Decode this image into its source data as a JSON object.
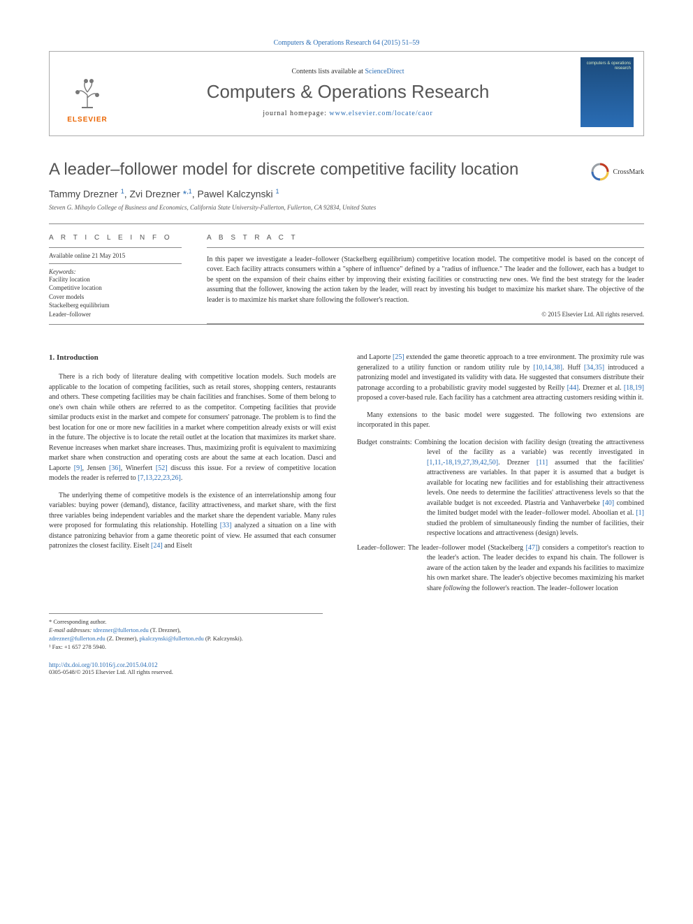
{
  "header": {
    "citation": "Computers & Operations Research 64 (2015) 51–59",
    "contents_prefix": "Contents lists available at ",
    "contents_link": "ScienceDirect",
    "journal_name": "Computers & Operations Research",
    "homepage_prefix": "journal homepage: ",
    "homepage_url": "www.elsevier.com/locate/caor",
    "cover_text": "computers & operations research",
    "elsevier": "ELSEVIER"
  },
  "crossmark": "CrossMark",
  "article": {
    "title": "A leader–follower model for discrete competitive facility location",
    "authors_html": "Tammy Drezner <sup>1</sup>, Zvi Drezner <span class='ast'>*</span><sup>,1</sup>, Pawel Kalczynski <sup>1</sup>",
    "affiliation": "Steven G. Mihaylo College of Business and Economics, California State University-Fullerton, Fullerton, CA 92834, United States"
  },
  "meta": {
    "info_head": "A R T I C L E   I N F O",
    "abs_head": "A B S T R A C T",
    "available": "Available online 21 May 2015",
    "kw_head": "Keywords:",
    "keywords": [
      "Facility location",
      "Competitive location",
      "Cover models",
      "Stackelberg equilibrium",
      "Leader–follower"
    ]
  },
  "abstract": "In this paper we investigate a leader–follower (Stackelberg equilibrium) competitive location model. The competitive model is based on the concept of cover. Each facility attracts consumers within a \"sphere of influence\" defined by a \"radius of influence.\" The leader and the follower, each has a budget to be spent on the expansion of their chains either by improving their existing facilities or constructing new ones. We find the best strategy for the leader assuming that the follower, knowing the action taken by the leader, will react by investing his budget to maximize his market share. The objective of the leader is to maximize his market share following the follower's reaction.",
  "copyright": "© 2015 Elsevier Ltd. All rights reserved.",
  "section1_head": "1.  Introduction",
  "left_paras": [
    "There is a rich body of literature dealing with competitive location models. Such models are applicable to the location of competing facilities, such as retail stores, shopping centers, restaurants and others. These competing facilities may be chain facilities and franchises. Some of them belong to one's own chain while others are referred to as the competitor. Competing facilities that provide similar products exist in the market and compete for consumers' patronage. The problem is to find the best location for one or more new facilities in a market where competition already exists or will exist in the future. The objective is to locate the retail outlet at the location that maximizes its market share. Revenue increases when market share increases. Thus, maximizing profit is equivalent to maximizing market share when construction and operating costs are about the same at each location. Dasci and Laporte <a class='cite' data-name='cite-link' data-interactable='true'>[9]</a>, Jensen <a class='cite' data-name='cite-link' data-interactable='true'>[36]</a>, Winerfert <a class='cite' data-name='cite-link' data-interactable='true'>[52]</a> discuss this issue. For a review of competitive location models the reader is referred to <a class='cite' data-name='cite-link' data-interactable='true'>[7,13,22,23,26]</a>.",
    "The underlying theme of competitive models is the existence of an interrelationship among four variables: buying power (demand), distance, facility attractiveness, and market share, with the first three variables being independent variables and the market share the dependent variable. Many rules were proposed for formulating this relationship. Hotelling <a class='cite' data-name='cite-link' data-interactable='true'>[33]</a> analyzed a situation on a line with distance patronizing behavior from a game theoretic point of view. He assumed that each consumer patronizes the closest facility. Eiselt <a class='cite' data-name='cite-link' data-interactable='true'>[24]</a> and Eiselt"
  ],
  "right_top": "and Laporte <a class='cite' data-name='cite-link' data-interactable='true'>[25]</a> extended the game theoretic approach to a tree environment. The proximity rule was generalized to a utility function or random utility rule by <a class='cite' data-name='cite-link' data-interactable='true'>[10,14,38]</a>. Huff <a class='cite' data-name='cite-link' data-interactable='true'>[34,35]</a> introduced a patronizing model and investigated its validity with data. He suggested that consumers distribute their patronage according to a probabilistic gravity model suggested by Reilly <a class='cite' data-name='cite-link' data-interactable='true'>[44]</a>. Drezner et al. <a class='cite' data-name='cite-link' data-interactable='true'>[18,19]</a> proposed a cover-based rule. Each facility has a catchment area attracting customers residing within it.",
  "right_bridge": "Many extensions to the basic model were suggested. The following two extensions are incorporated in this paper.",
  "ext": {
    "budget_label": "Budget constraints:",
    "budget_text": " Combining the location decision with facility design (treating the attractiveness level of the facility as a variable) was recently investigated in <a class='cite' data-name='cite-link' data-interactable='true'>[1,11,-18,19,27,39,42,50]</a>. Drezner <a class='cite' data-name='cite-link' data-interactable='true'>[11]</a> assumed that the facilities' attractiveness are variables. In that paper it is assumed that a budget is available for locating new facilities and for establishing their attractiveness levels. One needs to determine the facilities' attractiveness levels so that the available budget is not exceeded. Plastria and Vanhaverbeke <a class='cite' data-name='cite-link' data-interactable='true'>[40]</a> combined the limited budget model with the leader–follower model. Aboolian et al. <a class='cite' data-name='cite-link' data-interactable='true'>[1]</a> studied the problem of simultaneously finding the number of facilities, their respective locations and attractiveness (design) levels.",
    "leader_label": "Leader–follower:",
    "leader_text": " The leader–follower model (Stackelberg <a class='cite' data-name='cite-link' data-interactable='true'>[47]</a>) considers a competitor's reaction to the leader's action. The leader decides to expand his chain. The follower is aware of the action taken by the leader and expands his facilities to maximize his own market share. The leader's objective becomes maximizing his market share <span class='italic'>following</span> the follower's reaction. The leader–follower location"
  },
  "footnotes": {
    "corr": "* Corresponding author.",
    "emails_label": "E-mail addresses: ",
    "email1": "tdrezner@fullerton.edu",
    "email1_who": " (T. Drezner),",
    "email2": "zdrezner@fullerton.edu",
    "email2_who": " (Z. Drezner), ",
    "email3": "pkalczynski@fullerton.edu",
    "email3_who": " (P. Kalczynski).",
    "fax": "¹  Fax: +1 657 278 5940."
  },
  "doi": "http://dx.doi.org/10.1016/j.cor.2015.04.012",
  "issn": "0305-0548/© 2015 Elsevier Ltd. All rights reserved.",
  "colors": {
    "link": "#2a6db5",
    "elsevier_orange": "#EB6500",
    "cover_bg_top": "#1b4a7a",
    "cover_bg_bottom": "#2a6db5",
    "crossmark_red": "#c23b22",
    "crossmark_yellow": "#f4c542",
    "crossmark_blue": "#3b6db5",
    "crossmark_gray": "#9aa0a6"
  }
}
